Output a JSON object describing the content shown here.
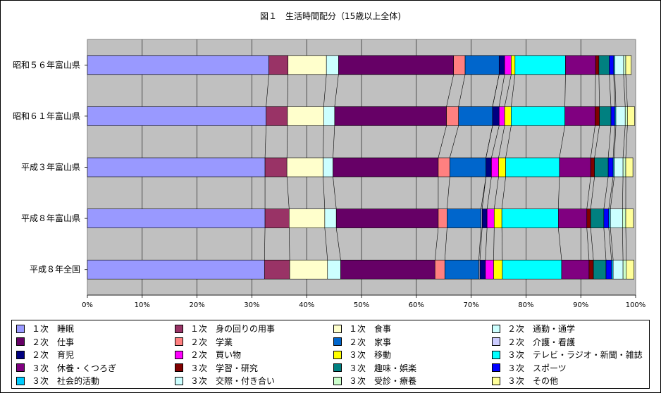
{
  "chart_data": {
    "type": "bar",
    "stacked": "percent",
    "orientation": "horizontal",
    "title": "図１　生活時間配分（15歳以上全体)",
    "xlim": [
      0,
      100
    ],
    "x_tick_labels": [
      "0%",
      "10%",
      "20%",
      "30%",
      "40%",
      "50%",
      "60%",
      "70%",
      "80%",
      "90%",
      "100%"
    ],
    "grid": true,
    "legend_position": "bottom",
    "categories": [
      "昭和５６年富山県",
      "昭和６１年富山県",
      "平成３年富山県",
      "平成８年富山県",
      "平成８年全国"
    ],
    "series": [
      {
        "name": "１次　睡眠",
        "color": "#9999ff",
        "values": [
          33.1,
          32.6,
          32.4,
          32.4,
          32.3
        ]
      },
      {
        "name": "１次　身の回りの用事",
        "color": "#993366",
        "values": [
          3.5,
          3.9,
          4.0,
          4.4,
          4.6
        ]
      },
      {
        "name": "１次　食事",
        "color": "#ffffcc",
        "values": [
          7.0,
          6.6,
          6.6,
          6.5,
          6.9
        ]
      },
      {
        "name": "２次　通勤・通学",
        "color": "#ccffff",
        "values": [
          2.2,
          2.0,
          1.8,
          2.1,
          2.4
        ]
      },
      {
        "name": "２次　仕事",
        "color": "#660066",
        "values": [
          21.0,
          20.4,
          19.2,
          18.6,
          17.2
        ]
      },
      {
        "name": "２次　学業",
        "color": "#ff8080",
        "values": [
          2.1,
          2.2,
          2.1,
          1.6,
          1.8
        ]
      },
      {
        "name": "２次　家事",
        "color": "#0066cc",
        "values": [
          6.2,
          6.2,
          6.6,
          6.2,
          6.2
        ]
      },
      {
        "name": "２次　介護・看護",
        "color": "#ccccff",
        "values": [
          0.0,
          0.0,
          0.0,
          0.2,
          0.2
        ]
      },
      {
        "name": "２次　育児",
        "color": "#000080",
        "values": [
          1.0,
          1.2,
          1.0,
          0.9,
          1.0
        ]
      },
      {
        "name": "２次　買い物",
        "color": "#ff00ff",
        "values": [
          1.2,
          1.0,
          1.3,
          1.3,
          1.5
        ]
      },
      {
        "name": "３次　移動",
        "color": "#ffff00",
        "values": [
          0.7,
          1.2,
          1.3,
          1.4,
          1.6
        ]
      },
      {
        "name": "３次　テレビ・ラジオ・新聞・雑誌",
        "color": "#00ffff",
        "values": [
          9.2,
          9.8,
          9.8,
          10.3,
          10.8
        ]
      },
      {
        "name": "３次　休養・くつろぎ",
        "color": "#800080",
        "values": [
          5.5,
          5.5,
          5.7,
          5.2,
          5.0
        ]
      },
      {
        "name": "３次　学習・研究",
        "color": "#800000",
        "values": [
          0.6,
          0.8,
          0.7,
          0.7,
          0.8
        ]
      },
      {
        "name": "３次　趣味・娯楽",
        "color": "#008080",
        "values": [
          1.9,
          2.1,
          2.5,
          2.4,
          2.3
        ]
      },
      {
        "name": "３次　スポーツ",
        "color": "#0000ff",
        "values": [
          0.8,
          0.7,
          0.9,
          0.9,
          1.0
        ]
      },
      {
        "name": "３次　社会的活動",
        "color": "#00ccff",
        "values": [
          0.2,
          0.2,
          0.2,
          0.3,
          0.3
        ]
      },
      {
        "name": "３次　交際・付き合い",
        "color": "#ccffff",
        "values": [
          1.6,
          1.7,
          1.6,
          2.2,
          1.8
        ]
      },
      {
        "name": "３次　受診・療養",
        "color": "#ccffcc",
        "values": [
          0.4,
          0.4,
          0.5,
          0.6,
          0.6
        ]
      },
      {
        "name": "３次　その他",
        "color": "#ffff99",
        "values": [
          1.0,
          1.3,
          1.3,
          1.4,
          1.4
        ]
      }
    ]
  }
}
